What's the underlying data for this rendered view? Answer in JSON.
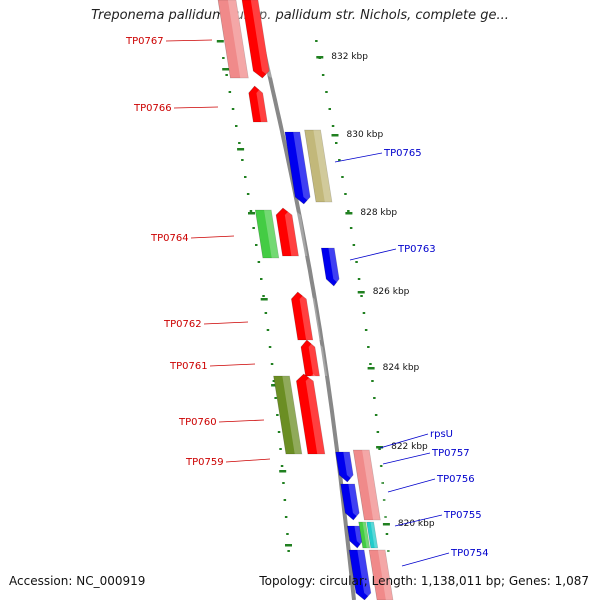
{
  "title": "Treponema pallidum subsp. pallidum str. Nichols, complete ge...",
  "footer": {
    "accession": "Accession: NC_000919",
    "summary": "Topology: circular; Length: 1,138,011 bp; Genes: 1,087"
  },
  "colors": {
    "forward_label": "#cc0000",
    "reverse_label": "#0000cc",
    "ruler": "#208020",
    "backbone": "#888888"
  },
  "ruler_ticks": [
    "832 kbp",
    "830 kbp",
    "828 kbp",
    "826 kbp",
    "824 kbp",
    "822 kbp",
    "820 kbp"
  ],
  "genes_forward": [
    {
      "label": "TP0767",
      "color": "#ff0000"
    },
    {
      "label": "TP0766",
      "color": "#ff0000"
    },
    {
      "label": "TP0764",
      "color": "#ff0000"
    },
    {
      "label": "TP0762",
      "color": "#ff0000"
    },
    {
      "label": "TP0761",
      "color": "#ff0000"
    },
    {
      "label": "TP0760",
      "color": "#ff0000"
    },
    {
      "label": "TP0759",
      "color": "#ff0000"
    }
  ],
  "genes_reverse": [
    {
      "label": "TP0765",
      "color": "#0000ee"
    },
    {
      "label": "TP0763",
      "color": "#0000ee"
    },
    {
      "label": "rpsU",
      "color": "#0000ee"
    },
    {
      "label": "TP0757",
      "color": "#0000ee"
    },
    {
      "label": "TP0756",
      "color": "#0000ee"
    },
    {
      "label": "TP0755",
      "color": "#0000ee"
    },
    {
      "label": "TP0754",
      "color": "#0000ee"
    }
  ]
}
